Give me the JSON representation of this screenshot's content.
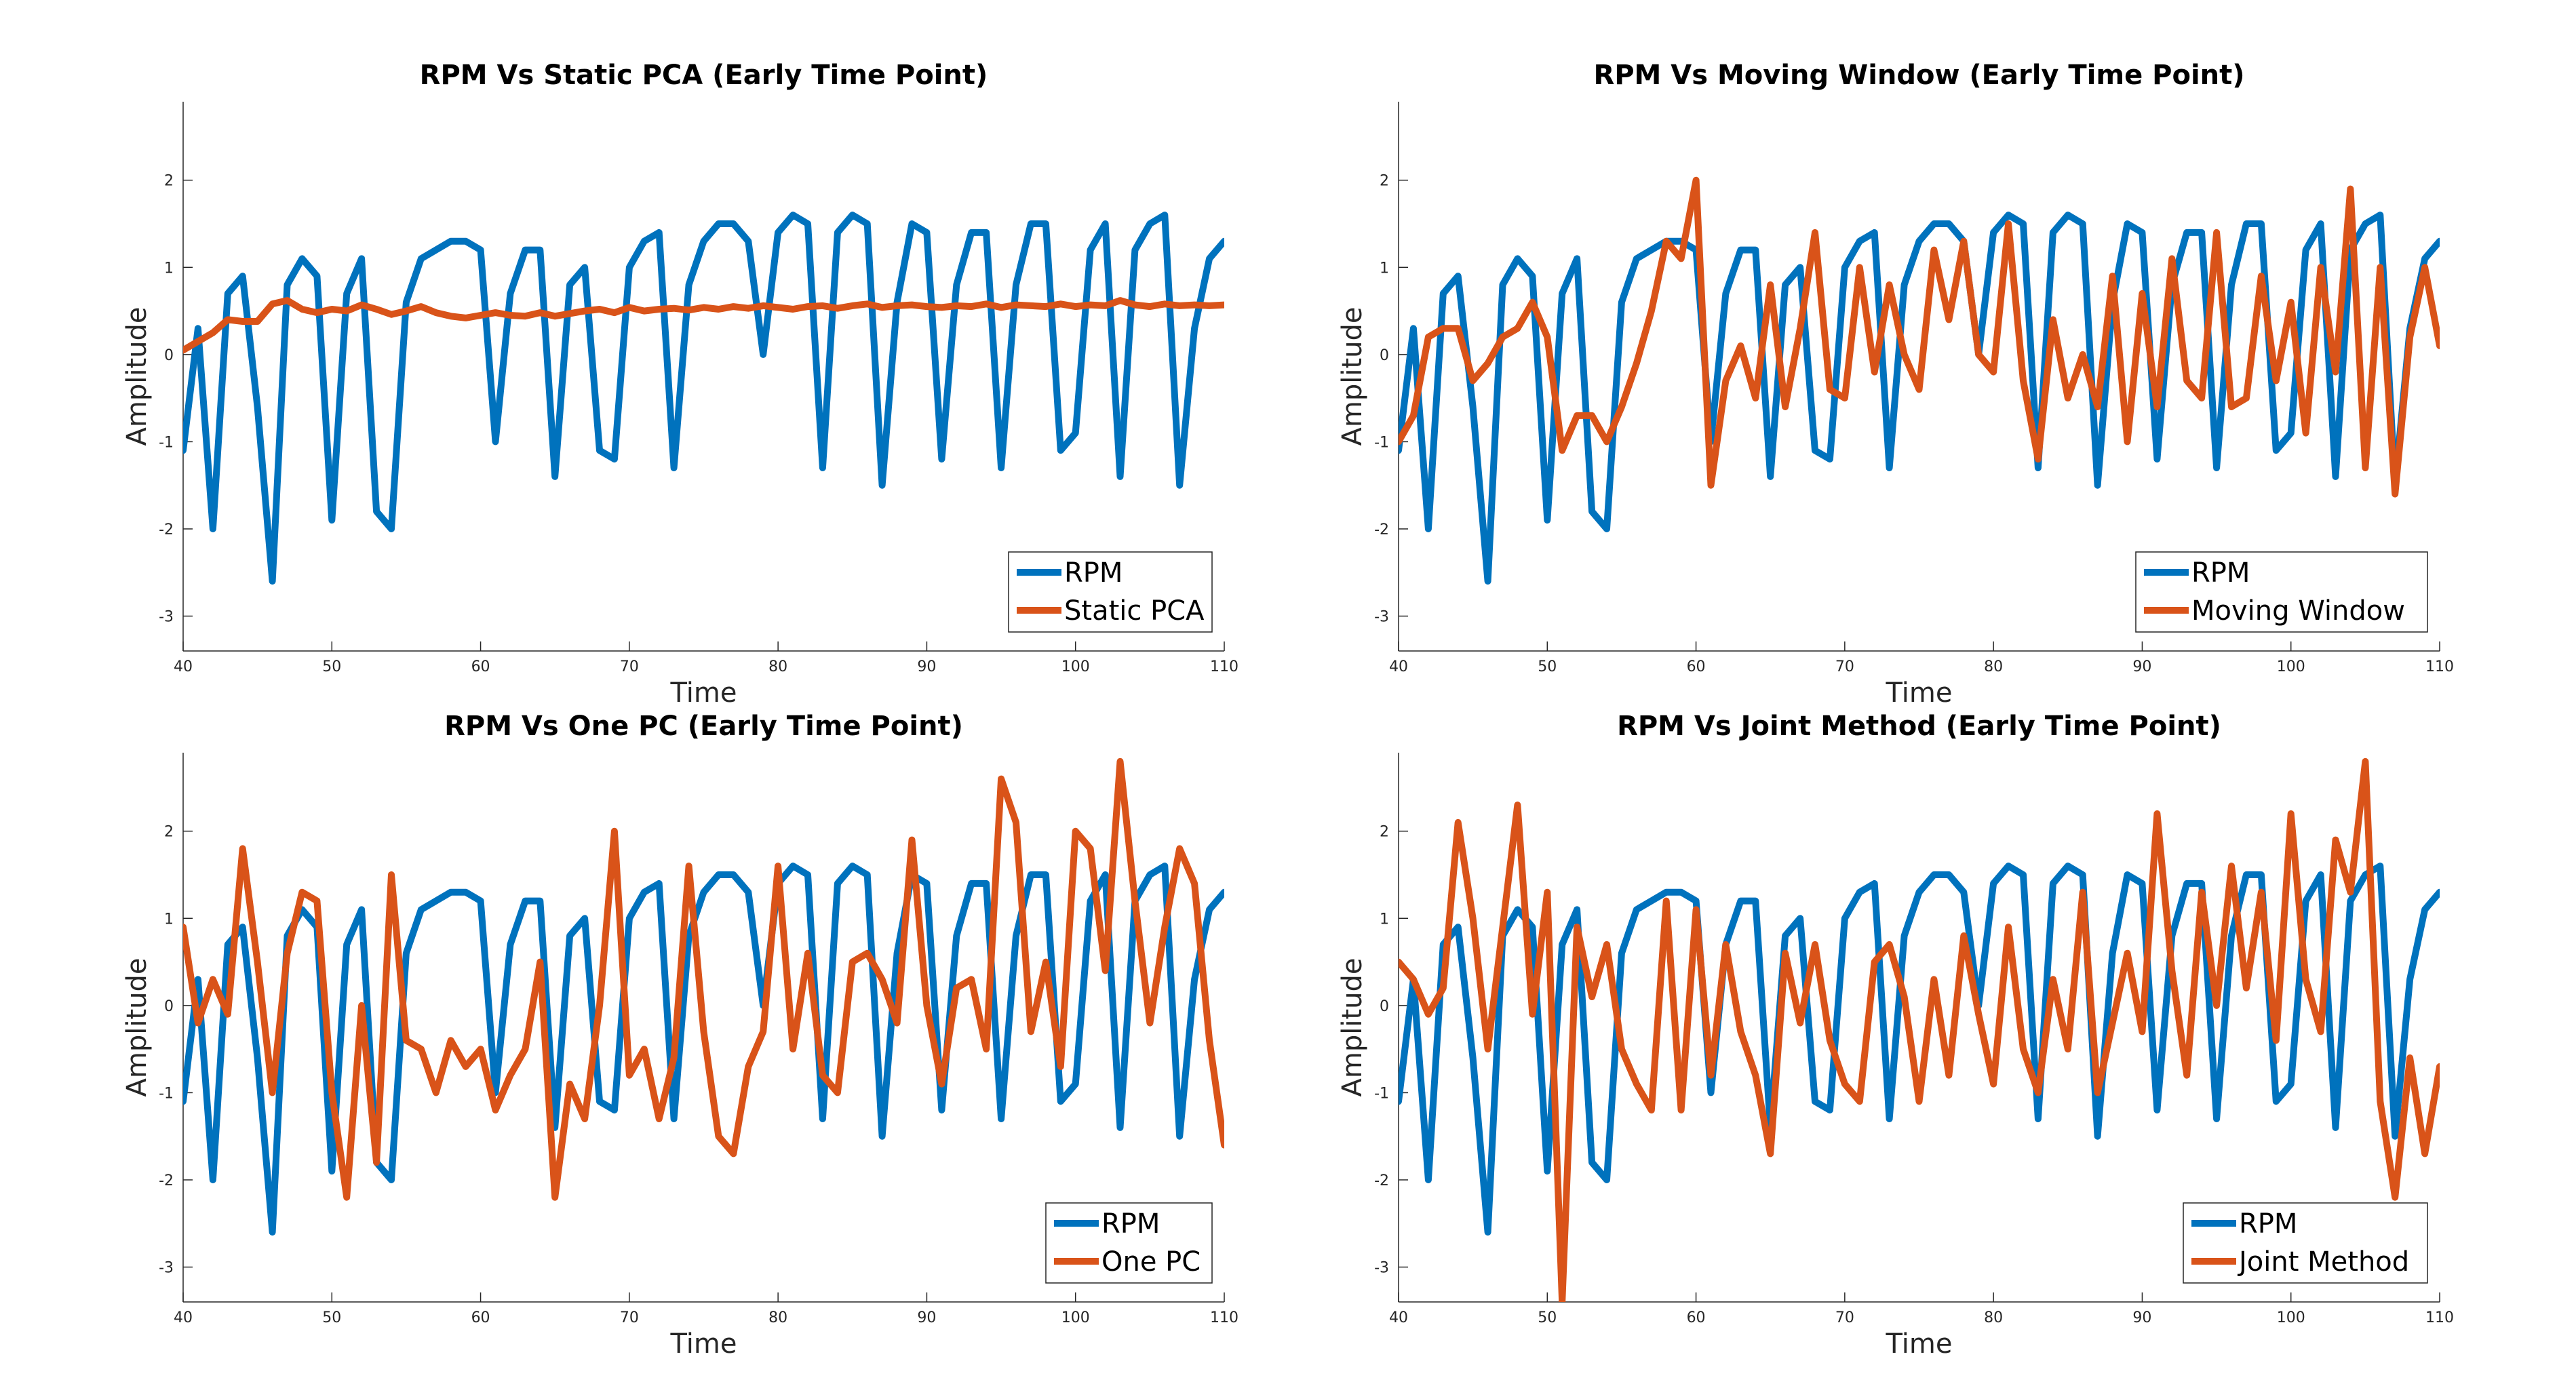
{
  "colors": {
    "rpm": "#0072BD",
    "method": "#D95319",
    "axis": "#262626"
  },
  "chart_data": [
    {
      "type": "line",
      "title": "RPM Vs Static PCA (Early Time Point)",
      "xlabel": "Time",
      "ylabel": "Amplitude",
      "xlim": [
        40,
        110
      ],
      "ylim": [
        -3.4,
        2.9
      ],
      "xticks": [
        40,
        50,
        60,
        70,
        80,
        90,
        100,
        110
      ],
      "yticks": [
        -3,
        -2,
        -1,
        0,
        1,
        2
      ],
      "legend_position": "bottom-right",
      "series": [
        {
          "name": "RPM",
          "key": "rpm"
        },
        {
          "name": "Static PCA",
          "key": "method",
          "x": [
            40,
            41,
            42,
            43,
            44,
            45,
            46,
            47,
            48,
            49,
            50,
            51,
            52,
            53,
            54,
            55,
            56,
            57,
            58,
            59,
            60,
            61,
            62,
            63,
            64,
            65,
            66,
            67,
            68,
            69,
            70,
            71,
            72,
            73,
            74,
            75,
            76,
            77,
            78,
            79,
            80,
            81,
            82,
            83,
            84,
            85,
            86,
            87,
            88,
            89,
            90,
            91,
            92,
            93,
            94,
            95,
            96,
            97,
            98,
            99,
            100,
            101,
            102,
            103,
            104,
            105,
            106,
            107,
            108,
            109,
            110
          ],
          "y": [
            0.05,
            0.15,
            0.25,
            0.4,
            0.38,
            0.38,
            0.58,
            0.62,
            0.52,
            0.48,
            0.52,
            0.5,
            0.57,
            0.52,
            0.46,
            0.5,
            0.55,
            0.48,
            0.44,
            0.42,
            0.45,
            0.48,
            0.45,
            0.44,
            0.48,
            0.44,
            0.47,
            0.5,
            0.52,
            0.48,
            0.54,
            0.5,
            0.52,
            0.53,
            0.51,
            0.54,
            0.52,
            0.55,
            0.53,
            0.56,
            0.54,
            0.52,
            0.55,
            0.56,
            0.53,
            0.56,
            0.58,
            0.54,
            0.56,
            0.57,
            0.55,
            0.54,
            0.56,
            0.55,
            0.58,
            0.54,
            0.57,
            0.56,
            0.55,
            0.58,
            0.55,
            0.57,
            0.56,
            0.62,
            0.57,
            0.55,
            0.58,
            0.56,
            0.57,
            0.56,
            0.57
          ]
        }
      ]
    },
    {
      "type": "line",
      "title": "RPM Vs Moving Window (Early Time Point)",
      "xlabel": "Time",
      "ylabel": "Amplitude",
      "xlim": [
        40,
        110
      ],
      "ylim": [
        -3.4,
        2.9
      ],
      "xticks": [
        40,
        50,
        60,
        70,
        80,
        90,
        100,
        110
      ],
      "yticks": [
        -3,
        -2,
        -1,
        0,
        1,
        2
      ],
      "legend_position": "bottom-right",
      "series": [
        {
          "name": "RPM",
          "key": "rpm"
        },
        {
          "name": "Moving Window",
          "key": "method",
          "x": [
            40,
            41,
            42,
            43,
            44,
            45,
            46,
            47,
            48,
            49,
            50,
            51,
            52,
            53,
            54,
            55,
            56,
            57,
            58,
            59,
            60,
            61,
            62,
            63,
            64,
            65,
            66,
            67,
            68,
            69,
            70,
            71,
            72,
            73,
            74,
            75,
            76,
            77,
            78,
            79,
            80,
            81,
            82,
            83,
            84,
            85,
            86,
            87,
            88,
            89,
            90,
            91,
            92,
            93,
            94,
            95,
            96,
            97,
            98,
            99,
            100,
            101,
            102,
            103,
            104,
            105,
            106,
            107,
            108,
            109,
            110
          ],
          "y": [
            -1.0,
            -0.7,
            0.2,
            0.3,
            0.3,
            -0.3,
            -0.1,
            0.2,
            0.3,
            0.6,
            0.2,
            -1.1,
            -0.7,
            -0.7,
            -1.0,
            -0.6,
            -0.1,
            0.5,
            1.3,
            1.1,
            2.0,
            -1.5,
            -0.3,
            0.1,
            -0.5,
            0.8,
            -0.6,
            0.3,
            1.4,
            -0.4,
            -0.5,
            1.0,
            -0.2,
            0.8,
            0.0,
            -0.4,
            1.2,
            0.4,
            1.3,
            0.0,
            -0.2,
            1.5,
            -0.3,
            -1.2,
            0.4,
            -0.5,
            0.0,
            -0.6,
            0.9,
            -1.0,
            0.7,
            -0.6,
            1.1,
            -0.3,
            -0.5,
            1.4,
            -0.6,
            -0.5,
            0.9,
            -0.3,
            0.6,
            -0.9,
            1.0,
            -0.2,
            1.9,
            -1.3,
            1.0,
            -1.6,
            0.2,
            1.0,
            0.1
          ]
        }
      ]
    },
    {
      "type": "line",
      "title": "RPM Vs One PC (Early Time Point)",
      "xlabel": "Time",
      "ylabel": "Amplitude",
      "xlim": [
        40,
        110
      ],
      "ylim": [
        -3.4,
        2.9
      ],
      "xticks": [
        40,
        50,
        60,
        70,
        80,
        90,
        100,
        110
      ],
      "yticks": [
        -3,
        -2,
        -1,
        0,
        1,
        2
      ],
      "legend_position": "bottom-right",
      "series": [
        {
          "name": "RPM",
          "key": "rpm"
        },
        {
          "name": "One PC",
          "key": "method",
          "x": [
            40,
            41,
            42,
            43,
            44,
            45,
            46,
            47,
            48,
            49,
            50,
            51,
            52,
            53,
            54,
            55,
            56,
            57,
            58,
            59,
            60,
            61,
            62,
            63,
            64,
            65,
            66,
            67,
            68,
            69,
            70,
            71,
            72,
            73,
            74,
            75,
            76,
            77,
            78,
            79,
            80,
            81,
            82,
            83,
            84,
            85,
            86,
            87,
            88,
            89,
            90,
            91,
            92,
            93,
            94,
            95,
            96,
            97,
            98,
            99,
            100,
            101,
            102,
            103,
            104,
            105,
            106,
            107,
            108,
            109,
            110
          ],
          "y": [
            0.9,
            -0.2,
            0.3,
            -0.1,
            1.8,
            0.5,
            -1.0,
            0.6,
            1.3,
            1.2,
            -1.0,
            -2.2,
            0.0,
            -1.8,
            1.5,
            -0.4,
            -0.5,
            -1.0,
            -0.4,
            -0.7,
            -0.5,
            -1.2,
            -0.8,
            -0.5,
            0.5,
            -2.2,
            -0.9,
            -1.3,
            0.0,
            2.0,
            -0.8,
            -0.5,
            -1.3,
            -0.6,
            1.6,
            -0.3,
            -1.5,
            -1.7,
            -0.7,
            -0.3,
            1.6,
            -0.5,
            0.6,
            -0.8,
            -1.0,
            0.5,
            0.6,
            0.3,
            -0.2,
            1.9,
            0.0,
            -0.9,
            0.2,
            0.3,
            -0.5,
            2.6,
            2.1,
            -0.3,
            0.5,
            -0.7,
            2.0,
            1.8,
            0.4,
            2.8,
            1.2,
            -0.2,
            0.9,
            1.8,
            1.4,
            -0.4,
            -1.6
          ]
        }
      ]
    },
    {
      "type": "line",
      "title": "RPM Vs Joint Method (Early Time Point)",
      "xlabel": "Time",
      "ylabel": "Amplitude",
      "xlim": [
        40,
        110
      ],
      "ylim": [
        -3.4,
        2.9
      ],
      "xticks": [
        40,
        50,
        60,
        70,
        80,
        90,
        100,
        110
      ],
      "yticks": [
        -3,
        -2,
        -1,
        0,
        1,
        2
      ],
      "legend_position": "bottom-right",
      "series": [
        {
          "name": "RPM",
          "key": "rpm"
        },
        {
          "name": "Joint Method",
          "key": "method",
          "x": [
            40,
            41,
            42,
            43,
            44,
            45,
            46,
            47,
            48,
            49,
            50,
            51,
            52,
            53,
            54,
            55,
            56,
            57,
            58,
            59,
            60,
            61,
            62,
            63,
            64,
            65,
            66,
            67,
            68,
            69,
            70,
            71,
            72,
            73,
            74,
            75,
            76,
            77,
            78,
            79,
            80,
            81,
            82,
            83,
            84,
            85,
            86,
            87,
            88,
            89,
            90,
            91,
            92,
            93,
            94,
            95,
            96,
            97,
            98,
            99,
            100,
            101,
            102,
            103,
            104,
            105,
            106,
            107,
            108,
            109,
            110
          ],
          "y": [
            0.5,
            0.3,
            -0.1,
            0.2,
            2.1,
            1.0,
            -0.5,
            0.9,
            2.3,
            -0.1,
            1.3,
            -3.4,
            0.9,
            0.1,
            0.7,
            -0.5,
            -0.9,
            -1.2,
            1.2,
            -1.2,
            1.1,
            -0.8,
            0.7,
            -0.3,
            -0.8,
            -1.7,
            0.6,
            -0.2,
            0.7,
            -0.4,
            -0.9,
            -1.1,
            0.5,
            0.7,
            0.1,
            -1.1,
            0.3,
            -0.8,
            0.8,
            -0.1,
            -0.9,
            0.9,
            -0.5,
            -1.0,
            0.3,
            -0.5,
            1.3,
            -1.0,
            -0.2,
            0.6,
            -0.3,
            2.2,
            0.4,
            -0.8,
            1.3,
            0.0,
            1.6,
            0.2,
            1.3,
            -0.4,
            2.2,
            0.3,
            -0.3,
            1.9,
            1.3,
            2.8,
            -1.1,
            -2.2,
            -0.6,
            -1.7,
            -0.7
          ]
        }
      ]
    }
  ],
  "rpm_reference": {
    "x": [
      40,
      41,
      42,
      43,
      44,
      45,
      46,
      47,
      48,
      49,
      50,
      51,
      52,
      53,
      54,
      55,
      56,
      57,
      58,
      59,
      60,
      61,
      62,
      63,
      64,
      65,
      66,
      67,
      68,
      69,
      70,
      71,
      72,
      73,
      74,
      75,
      76,
      77,
      78,
      79,
      80,
      81,
      82,
      83,
      84,
      85,
      86,
      87,
      88,
      89,
      90,
      91,
      92,
      93,
      94,
      95,
      96,
      97,
      98,
      99,
      100,
      101,
      102,
      103,
      104,
      105,
      106,
      107,
      108,
      109,
      110
    ],
    "y": [
      -1.1,
      0.3,
      -2.0,
      0.7,
      0.9,
      -0.6,
      -2.6,
      0.8,
      1.1,
      0.9,
      -1.9,
      0.7,
      1.1,
      -1.8,
      -2.0,
      0.6,
      1.1,
      1.2,
      1.3,
      1.3,
      1.2,
      -1.0,
      0.7,
      1.2,
      1.2,
      -1.4,
      0.8,
      1.0,
      -1.1,
      -1.2,
      1.0,
      1.3,
      1.4,
      -1.3,
      0.8,
      1.3,
      1.5,
      1.5,
      1.3,
      0.0,
      1.4,
      1.6,
      1.5,
      -1.3,
      1.4,
      1.6,
      1.5,
      -1.5,
      0.6,
      1.5,
      1.4,
      -1.2,
      0.8,
      1.4,
      1.4,
      -1.3,
      0.8,
      1.5,
      1.5,
      -1.1,
      -0.9,
      1.2,
      1.5,
      -1.4,
      1.2,
      1.5,
      1.6,
      -1.5,
      0.3,
      1.1,
      1.3
    ]
  }
}
